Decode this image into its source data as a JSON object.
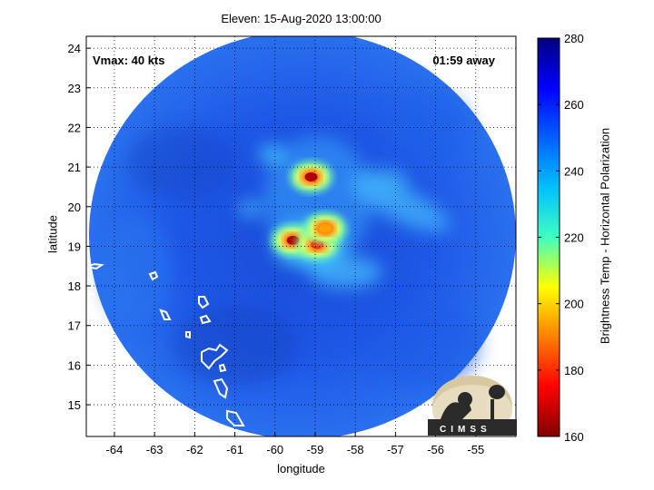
{
  "title": "Eleven: 15-Aug-2020 13:00:00",
  "xlabel": "longitude",
  "ylabel": "latitude",
  "vmax_label": "Vmax: 40 kts",
  "time_away": "01:59 away",
  "colorbar": {
    "label": "Brightness Temp - Horizontal Polarization",
    "ticks": [
      "160",
      "180",
      "200",
      "220",
      "240",
      "260",
      "280"
    ],
    "range": [
      160,
      280
    ]
  },
  "map": {
    "lon_range": [
      -64.7,
      -54.0
    ],
    "lat_range": [
      14.2,
      24.3
    ],
    "lon_ticks": [
      "-64",
      "-63",
      "-62",
      "-61",
      "-60",
      "-59",
      "-58",
      "-57",
      "-56",
      "-55"
    ],
    "lat_ticks": [
      "15",
      "16",
      "17",
      "18",
      "19",
      "20",
      "21",
      "22",
      "23",
      "24"
    ],
    "grid": "dotted",
    "background_color": "#1a50dc",
    "swath_center": [
      -59.5,
      19.6
    ],
    "cold_cores": [
      {
        "lon": -59.1,
        "lat": 20.75,
        "tb": 165
      },
      {
        "lon": -59.55,
        "lat": 19.15,
        "tb": 170
      },
      {
        "lon": -58.95,
        "lat": 19.05,
        "tb": 180
      },
      {
        "lon": -58.75,
        "lat": 19.45,
        "tb": 190
      }
    ]
  },
  "logo_text": "CIMSS"
}
